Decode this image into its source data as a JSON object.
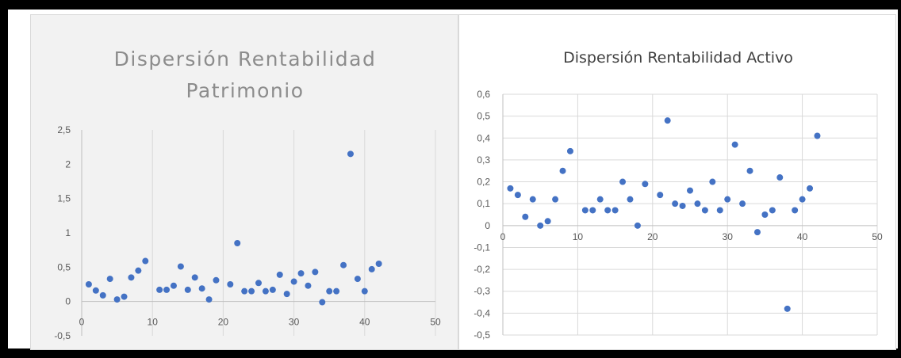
{
  "chart_data": [
    {
      "type": "scatter",
      "title": "Dispersión Rentabilidad Patrimonio",
      "title_lines": [
        "Dispersión Rentabilidad",
        "Patrimonio"
      ],
      "xlim": [
        0,
        50
      ],
      "ylim": [
        -0.5,
        2.5
      ],
      "x_ticks": [
        0,
        10,
        20,
        30,
        40,
        50
      ],
      "y_ticks": [
        -0.5,
        0,
        0.5,
        1,
        1.5,
        2,
        2.5
      ],
      "x_tick_labels": [
        "0",
        "10",
        "20",
        "30",
        "40",
        "50"
      ],
      "y_tick_labels": [
        "-0,5",
        "0",
        "0,5",
        "1",
        "1,5",
        "2",
        "2,5"
      ],
      "grid": "vertical",
      "color": "#4472c4",
      "points": [
        [
          1,
          0.25
        ],
        [
          2,
          0.16
        ],
        [
          3,
          0.09
        ],
        [
          4,
          0.33
        ],
        [
          5,
          0.03
        ],
        [
          6,
          0.07
        ],
        [
          7,
          0.35
        ],
        [
          8,
          0.45
        ],
        [
          9,
          0.59
        ],
        [
          11,
          0.17
        ],
        [
          12,
          0.17
        ],
        [
          13,
          0.23
        ],
        [
          14,
          0.51
        ],
        [
          15,
          0.17
        ],
        [
          16,
          0.35
        ],
        [
          17,
          0.19
        ],
        [
          18,
          0.03
        ],
        [
          19,
          0.31
        ],
        [
          21,
          0.25
        ],
        [
          22,
          0.85
        ],
        [
          23,
          0.15
        ],
        [
          24,
          0.15
        ],
        [
          25,
          0.27
        ],
        [
          26,
          0.15
        ],
        [
          27,
          0.17
        ],
        [
          28,
          0.39
        ],
        [
          29,
          0.11
        ],
        [
          30,
          0.29
        ],
        [
          31,
          0.41
        ],
        [
          32,
          0.23
        ],
        [
          33,
          0.43
        ],
        [
          34,
          -0.01
        ],
        [
          35,
          0.15
        ],
        [
          36,
          0.15
        ],
        [
          37,
          0.53
        ],
        [
          38,
          2.15
        ],
        [
          39,
          0.33
        ],
        [
          40,
          0.15
        ],
        [
          41,
          0.47
        ],
        [
          42,
          0.55
        ]
      ]
    },
    {
      "type": "scatter",
      "title": "Dispersión Rentabilidad Activo",
      "xlim": [
        0,
        50
      ],
      "ylim": [
        -0.5,
        0.6
      ],
      "x_ticks": [
        0,
        10,
        20,
        30,
        40,
        50
      ],
      "y_ticks": [
        -0.5,
        -0.4,
        -0.3,
        -0.2,
        -0.1,
        0,
        0.1,
        0.2,
        0.3,
        0.4,
        0.5,
        0.6
      ],
      "x_tick_labels": [
        "0",
        "10",
        "20",
        "30",
        "40",
        "50"
      ],
      "y_tick_labels": [
        "-0,5",
        "-0,4",
        "-0,3",
        "-0,2",
        "-0,1",
        "0",
        "0,1",
        "0,2",
        "0,3",
        "0,4",
        "0,5",
        "0,6"
      ],
      "grid": "both",
      "color": "#4472c4",
      "points": [
        [
          1,
          0.17
        ],
        [
          2,
          0.14
        ],
        [
          3,
          0.04
        ],
        [
          4,
          0.12
        ],
        [
          5,
          0.0
        ],
        [
          6,
          0.02
        ],
        [
          7,
          0.12
        ],
        [
          8,
          0.25
        ],
        [
          9,
          0.34
        ],
        [
          11,
          0.07
        ],
        [
          12,
          0.07
        ],
        [
          13,
          0.12
        ],
        [
          14,
          0.07
        ],
        [
          15,
          0.07
        ],
        [
          16,
          0.2
        ],
        [
          17,
          0.12
        ],
        [
          18,
          0.0
        ],
        [
          19,
          0.19
        ],
        [
          21,
          0.14
        ],
        [
          22,
          0.48
        ],
        [
          23,
          0.1
        ],
        [
          24,
          0.09
        ],
        [
          25,
          0.16
        ],
        [
          26,
          0.1
        ],
        [
          27,
          0.07
        ],
        [
          28,
          0.2
        ],
        [
          29,
          0.07
        ],
        [
          30,
          0.12
        ],
        [
          31,
          0.37
        ],
        [
          32,
          0.1
        ],
        [
          33,
          0.25
        ],
        [
          34,
          -0.03
        ],
        [
          35,
          0.05
        ],
        [
          36,
          0.07
        ],
        [
          37,
          0.22
        ],
        [
          38,
          -0.38
        ],
        [
          39,
          0.07
        ],
        [
          40,
          0.12
        ],
        [
          41,
          0.17
        ],
        [
          42,
          0.41
        ]
      ]
    }
  ]
}
